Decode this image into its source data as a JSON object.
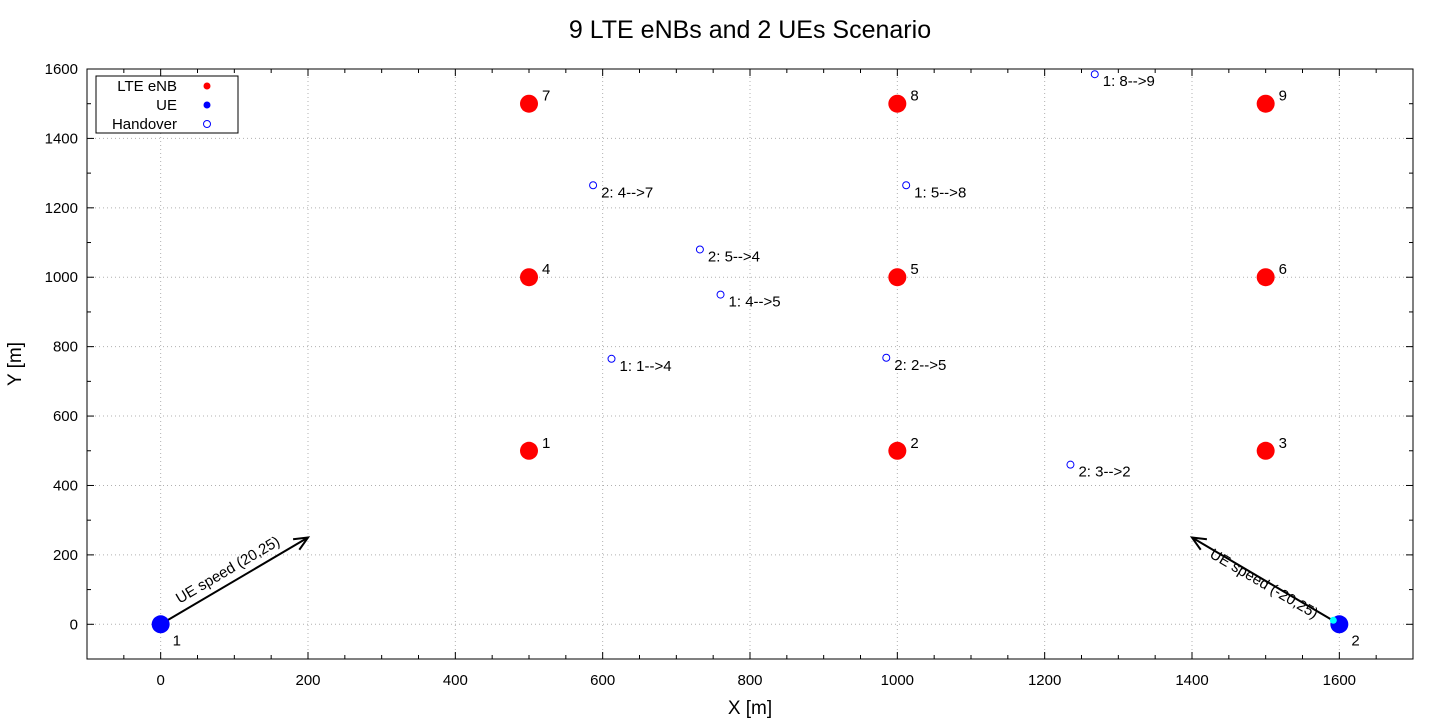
{
  "chart_data": {
    "type": "scatter",
    "title": "9 LTE eNBs and 2 UEs Scenario",
    "xlabel": "X [m]",
    "ylabel": "Y [m]",
    "xlim": [
      -100,
      1700
    ],
    "ylim": [
      -100,
      1600
    ],
    "x_ticks": [
      0,
      200,
      400,
      600,
      800,
      1000,
      1200,
      1400,
      1600
    ],
    "y_ticks": [
      0,
      200,
      400,
      600,
      800,
      1000,
      1200,
      1400,
      1600
    ],
    "grid": true,
    "legend_position": "top-left",
    "legend": [
      {
        "label": "LTE eNB",
        "marker": "filled-circle",
        "color": "#ff0000"
      },
      {
        "label": "UE",
        "marker": "filled-circle",
        "color": "#0000ff"
      },
      {
        "label": "Handover",
        "marker": "open-circle",
        "color": "#0000ff"
      }
    ],
    "enbs": [
      {
        "label": "1",
        "x": 500,
        "y": 500
      },
      {
        "label": "2",
        "x": 1000,
        "y": 500
      },
      {
        "label": "3",
        "x": 1500,
        "y": 500
      },
      {
        "label": "4",
        "x": 500,
        "y": 1000
      },
      {
        "label": "5",
        "x": 1000,
        "y": 1000
      },
      {
        "label": "6",
        "x": 1500,
        "y": 1000
      },
      {
        "label": "7",
        "x": 500,
        "y": 1500
      },
      {
        "label": "8",
        "x": 1000,
        "y": 1500
      },
      {
        "label": "9",
        "x": 1500,
        "y": 1500
      }
    ],
    "ues": [
      {
        "label": "1",
        "x": 0,
        "y": 0
      },
      {
        "label": "2",
        "x": 1600,
        "y": 0
      }
    ],
    "handovers": [
      {
        "label": "1: 1-->4",
        "x": 612,
        "y": 765
      },
      {
        "label": "1: 4-->5",
        "x": 760,
        "y": 950
      },
      {
        "label": "1: 5-->8",
        "x": 1012,
        "y": 1265
      },
      {
        "label": "1: 8-->9",
        "x": 1268,
        "y": 1585
      },
      {
        "label": "2: 2-->5",
        "x": 985,
        "y": 768
      },
      {
        "label": "2: 3-->2",
        "x": 1235,
        "y": 460
      },
      {
        "label": "2: 5-->4",
        "x": 732,
        "y": 1080
      },
      {
        "label": "2: 4-->7",
        "x": 587,
        "y": 1265
      }
    ],
    "arrows": [
      {
        "label": "UE speed (20,25)",
        "from": [
          0,
          0
        ],
        "to": [
          200,
          250
        ]
      },
      {
        "label": "UE speed (-20,25)",
        "from": [
          1600,
          0
        ],
        "to": [
          1400,
          250
        ]
      }
    ],
    "colors": {
      "enb": "#ff0000",
      "ue": "#0000ff",
      "ue2_highlight": "#00ffff",
      "handover": "#0000ff"
    }
  }
}
